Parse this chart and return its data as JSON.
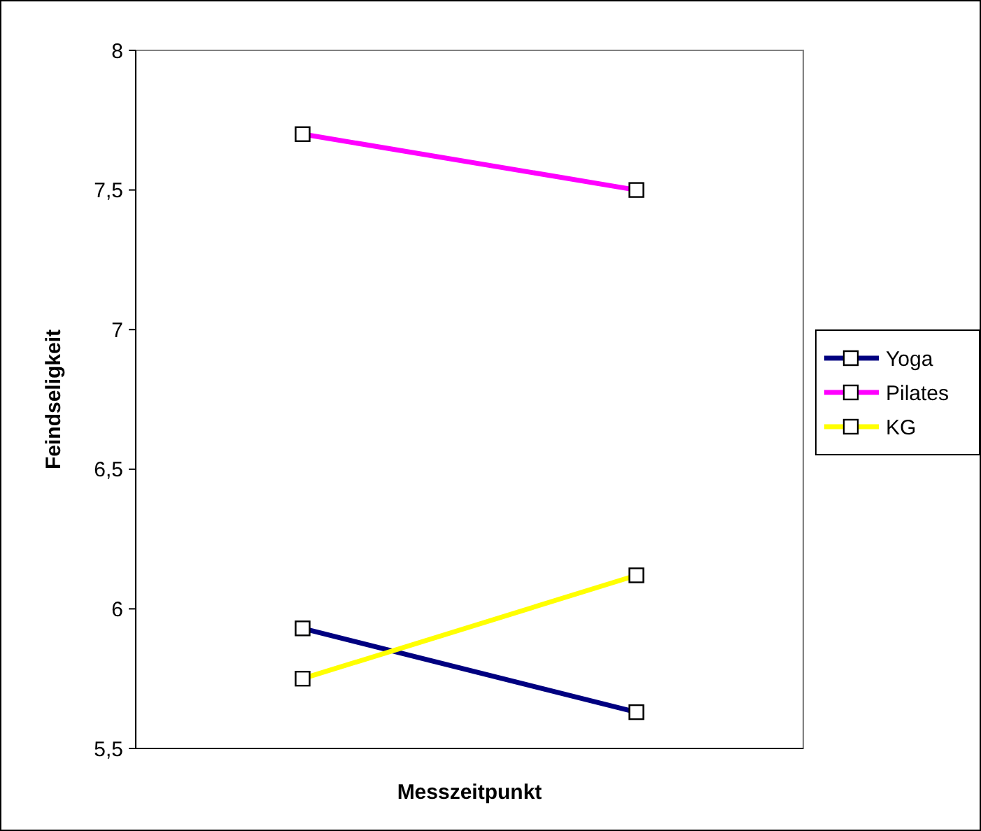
{
  "chart_data": {
    "type": "line",
    "xlabel": "Messzeitpunkt",
    "ylabel": "Feindseligkeit",
    "categories": [
      null,
      null
    ],
    "series": [
      {
        "name": "Yoga",
        "color": "#000080",
        "values": [
          5.93,
          5.63
        ]
      },
      {
        "name": "Pilates",
        "color": "#ff00ff",
        "values": [
          7.7,
          7.5
        ]
      },
      {
        "name": "KG",
        "color": "#ffff00",
        "values": [
          5.75,
          6.12
        ]
      }
    ],
    "ylim": [
      5.5,
      8
    ],
    "yticks": [
      {
        "value": 5.5,
        "label": "5,5"
      },
      {
        "value": 6,
        "label": "6"
      },
      {
        "value": 6.5,
        "label": "6,5"
      },
      {
        "value": 7,
        "label": "7"
      },
      {
        "value": 7.5,
        "label": "7,5"
      },
      {
        "value": 8,
        "label": "8"
      }
    ],
    "grid": false,
    "legend": "right",
    "marker": "square",
    "line_style": "solid"
  }
}
